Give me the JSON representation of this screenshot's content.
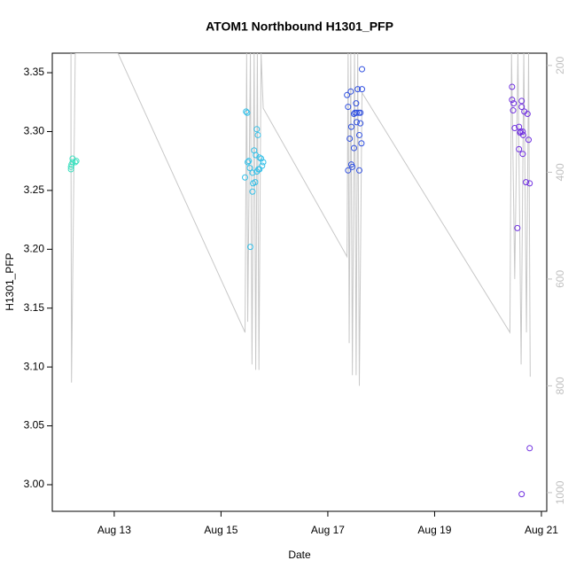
{
  "chart_data": {
    "type": "scatter",
    "title": "ATOM1 Northbound H1301_PFP",
    "x_label": "Date",
    "y_label": "H1301_PFP",
    "xlim": [
      11.84,
      21.1
    ],
    "xticks": [
      {
        "value": 13,
        "label": "Aug 13"
      },
      {
        "value": 15,
        "label": "Aug 15"
      },
      {
        "value": 17,
        "label": "Aug 17"
      },
      {
        "value": 19,
        "label": "Aug 19"
      },
      {
        "value": 21,
        "label": "Aug 21"
      }
    ],
    "ylim": [
      2.9774,
      3.3666
    ],
    "yticks": [
      {
        "value": 3,
        "label": "3.00"
      },
      3.05,
      {
        "value": 3.1,
        "label": "3.10"
      },
      3.15,
      {
        "value": 3.2,
        "label": "3.20"
      },
      3.25,
      {
        "value": 3.3,
        "label": "3.30"
      },
      3.35
    ],
    "y2lim": [
      1035,
      177
    ],
    "y2ticks": [
      200,
      400,
      600,
      800,
      1000
    ],
    "y2_color": "#c0c0c0",
    "series": [
      {
        "type": "line",
        "axis": "y2",
        "color": "#c8c8c8",
        "x": [
          12.19,
          12.19,
          12.2,
          12.27,
          13.07,
          15.45,
          15.48,
          15.5,
          15.55,
          15.58,
          15.62,
          15.65,
          15.68,
          15.71,
          15.75,
          15.79,
          17.36,
          17.38,
          17.4,
          17.43,
          17.46,
          17.5,
          17.53,
          17.56,
          17.59,
          17.64,
          20.41,
          20.44,
          20.5,
          20.56,
          20.62,
          20.67,
          20.72,
          20.76,
          20.79
        ],
        "values": [
          177,
          334,
          794,
          177,
          177,
          700,
          177,
          680,
          177,
          760,
          177,
          770,
          177,
          770,
          177,
          280,
          558,
          177,
          720,
          177,
          780,
          177,
          780,
          177,
          800,
          251,
          700,
          177,
          600,
          177,
          760,
          177,
          700,
          177,
          783
        ]
      },
      {
        "color": "#3fe0c0",
        "x": [
          12.19,
          12.2,
          12.22,
          12.19,
          12.22,
          12.29,
          12.27
        ],
        "values": [
          3.268,
          3.272,
          3.274,
          3.27,
          3.277,
          3.275,
          3.274
        ]
      },
      {
        "color": "#35c0e8",
        "x": [
          15.47,
          15.49,
          15.45,
          15.5,
          15.52,
          15.54,
          15.55,
          15.59,
          15.6,
          15.64,
          15.62,
          15.65,
          15.67,
          15.69,
          15.67,
          15.7,
          15.72,
          15.72,
          15.75,
          15.77,
          15.79,
          15.59
        ],
        "values": [
          3.317,
          3.316,
          3.261,
          3.274,
          3.275,
          3.269,
          3.202,
          3.249,
          3.256,
          3.257,
          3.284,
          3.28,
          3.302,
          3.297,
          3.266,
          3.268,
          3.278,
          3.268,
          3.277,
          3.271,
          3.274,
          3.265
        ]
      },
      {
        "color": "#3050e0",
        "x": [
          17.36,
          17.38,
          17.43,
          17.38,
          17.41,
          17.44,
          17.44,
          17.46,
          17.49,
          17.49,
          17.53,
          17.54,
          17.54,
          17.56,
          17.58,
          17.59,
          17.61,
          17.61,
          17.63,
          17.64,
          17.64,
          17.59,
          17.51
        ],
        "values": [
          3.331,
          3.321,
          3.334,
          3.267,
          3.294,
          3.304,
          3.272,
          3.27,
          3.286,
          3.315,
          3.324,
          3.316,
          3.308,
          3.336,
          3.316,
          3.297,
          3.316,
          3.307,
          3.29,
          3.336,
          3.353,
          3.267,
          3.316
        ]
      },
      {
        "color": "#7030e0",
        "x": [
          20.45,
          20.45,
          20.47,
          20.48,
          20.5,
          20.55,
          20.58,
          20.58,
          20.6,
          20.61,
          20.63,
          20.63,
          20.65,
          20.65,
          20.66,
          20.68,
          20.71,
          20.74,
          20.76,
          20.78,
          20.78,
          20.63
        ],
        "values": [
          3.338,
          3.327,
          3.318,
          3.324,
          3.303,
          3.218,
          3.285,
          3.304,
          3.299,
          3.3,
          3.321,
          3.326,
          3.281,
          3.3,
          3.297,
          3.317,
          3.257,
          3.315,
          3.293,
          3.256,
          3.031,
          2.992
        ]
      }
    ]
  }
}
